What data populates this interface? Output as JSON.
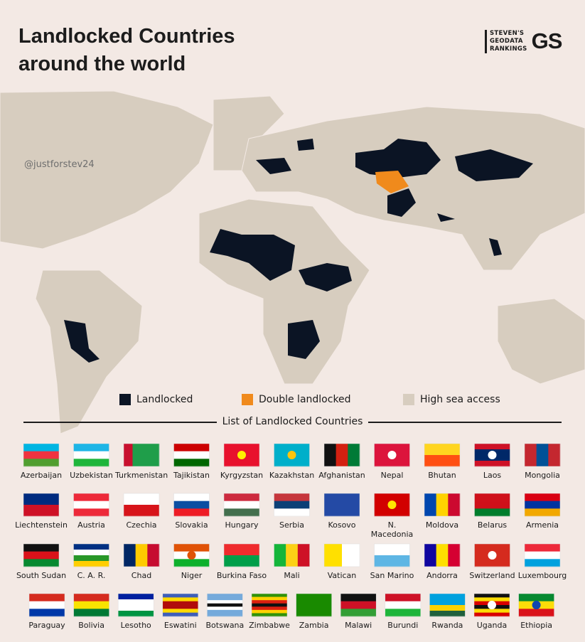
{
  "header": {
    "title": "Landlocked Countries around the world",
    "logo_lines": [
      "STEVEN'S",
      "GEODATA",
      "RANKINGS"
    ],
    "logo_mark": "GS"
  },
  "handle": "@justforstev24",
  "legend": [
    {
      "label": "Landlocked",
      "color": "#0b1424"
    },
    {
      "label": "Double landlocked",
      "color": "#f08a1c"
    },
    {
      "label": "High sea access",
      "color": "#d7cdbf"
    }
  ],
  "list_title": "List of Landlocked Countries",
  "countries": [
    "Azerbaijan",
    "Uzbekistan",
    "Turkmenistan",
    "Tajikistan",
    "Kyrgyzstan",
    "Kazakhstan",
    "Afghanistan",
    "Nepal",
    "Bhutan",
    "Laos",
    "Mongolia",
    "Liechtenstein",
    "Austria",
    "Czechia",
    "Slovakia",
    "Hungary",
    "Serbia",
    "Kosovo",
    "N. Macedonia",
    "Moldova",
    "Belarus",
    "Armenia",
    "South Sudan",
    "C. A. R.",
    "Chad",
    "Niger",
    "Burkina Faso",
    "Mali",
    "Vatican",
    "San Marino",
    "Andorra",
    "Switzerland",
    "Luxembourg",
    "Paraguay",
    "Bolivia",
    "Lesotho",
    "Eswatini",
    "Botswana",
    "Zimbabwe",
    "Zambia",
    "Malawi",
    "Burundi",
    "Rwanda",
    "Uganda",
    "Ethiopia"
  ]
}
